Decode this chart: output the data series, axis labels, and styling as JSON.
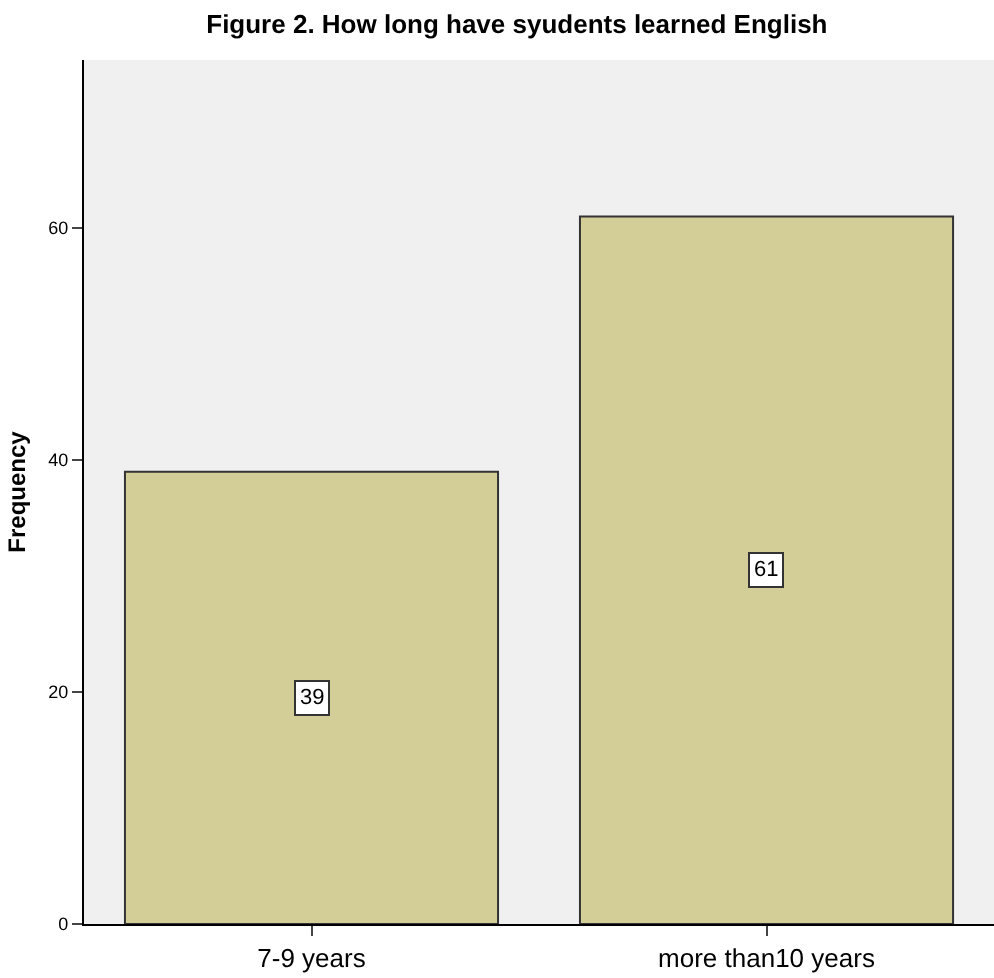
{
  "chart_data": {
    "type": "bar",
    "title": "Figure 2. How long have syudents learned English",
    "ylabel": "Frequency",
    "categories": [
      "7-9 years",
      "more than10 years"
    ],
    "values": [
      39,
      61
    ],
    "color": "#d3ce97",
    "ylim": [
      0,
      74.5
    ],
    "yticks": [
      0,
      20,
      40,
      60
    ],
    "data_labels": true,
    "grid": false,
    "legend": false
  }
}
